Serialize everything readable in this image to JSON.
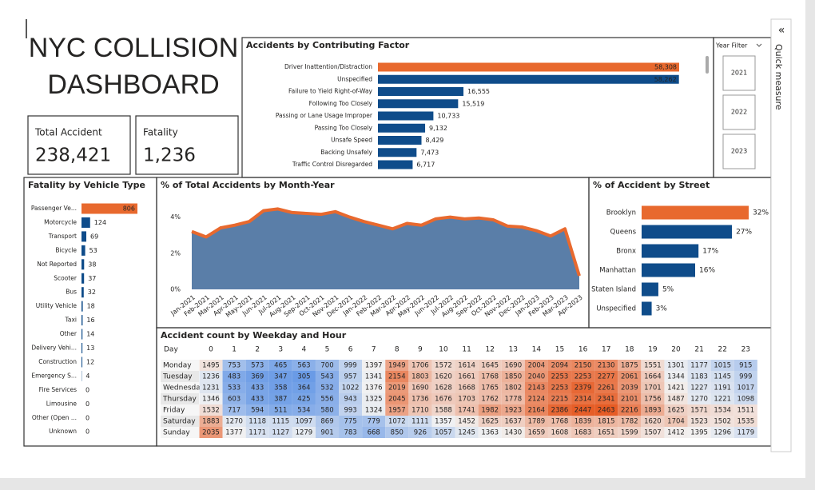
{
  "dashboard": {
    "title": [
      "NYC COLLISION",
      "DASHBOARD"
    ],
    "kpis": [
      {
        "label": "Total Accident",
        "value": "238,421"
      },
      {
        "label": "Fatality",
        "value": "1,236"
      }
    ],
    "year_filter": {
      "title": "Year Filter",
      "options": [
        "2021",
        "2022",
        "2023"
      ]
    },
    "side_pane": "Quick measure"
  },
  "chart_data": [
    {
      "type": "hbar",
      "title": "Accidents by Contributing Factor",
      "categories": [
        "Driver Inattention/Distraction",
        "Unspecified",
        "Failure to Yield Right-of-Way",
        "Following Too Closely",
        "Passing or Lane Usage Improper",
        "Passing Too Closely",
        "Unsafe Speed",
        "Backing Unsafely",
        "Traffic Control Disregarded"
      ],
      "values": [
        58308,
        58262,
        16555,
        15519,
        10733,
        9132,
        8429,
        7473,
        6717
      ],
      "value_labels": [
        "58,308",
        "58,262",
        "16,555",
        "15,519",
        "10,733",
        "9,132",
        "8,429",
        "7,473",
        "6,717"
      ],
      "colors": [
        "#e8692e",
        "#0f4c8a",
        "#0f4c8a",
        "#0f4c8a",
        "#0f4c8a",
        "#0f4c8a",
        "#0f4c8a",
        "#0f4c8a",
        "#0f4c8a"
      ]
    },
    {
      "type": "hbar",
      "title": "Fatality by Vehicle Type",
      "categories": [
        "Passenger Ve...",
        "Motorcycle",
        "Transport",
        "Bicycle",
        "Not Reported",
        "Scooter",
        "Bus",
        "Utility Vehicle",
        "Taxi",
        "Other",
        "Delivery Vehi...",
        "Construction",
        "Emergency S...",
        "Fire Services",
        "Limousine",
        "Other (Open ...",
        "Unknown"
      ],
      "values": [
        806,
        124,
        69,
        53,
        38,
        37,
        32,
        18,
        16,
        14,
        13,
        12,
        4,
        0,
        0,
        0,
        0
      ],
      "colors": [
        "#e8692e",
        "#0f4c8a",
        "#0f4c8a",
        "#0f4c8a",
        "#0f4c8a",
        "#0f4c8a",
        "#0f4c8a",
        "#0f4c8a",
        "#0f4c8a",
        "#0f4c8a",
        "#0f4c8a",
        "#0f4c8a",
        "#0f4c8a",
        "#0f4c8a",
        "#0f4c8a",
        "#0f4c8a",
        "#0f4c8a"
      ]
    },
    {
      "type": "area",
      "title": "% of Total Accidents by Month-Year",
      "x": [
        "Jan-2021",
        "Feb-2021",
        "Mar-2021",
        "Apr-2021",
        "May-2021",
        "Jun-2021",
        "Jul-2021",
        "Aug-2021",
        "Sep-2021",
        "Oct-2021",
        "Nov-2021",
        "Dec-2021",
        "Jan-2022",
        "Feb-2022",
        "Mar-2022",
        "Apr-2022",
        "May-2022",
        "Jun-2022",
        "Jul-2022",
        "Aug-2022",
        "Sep-2022",
        "Oct-2022",
        "Nov-2022",
        "Dec-2022",
        "Jan-2023",
        "Feb-2023",
        "Mar-2023",
        "Apr-2023"
      ],
      "values": [
        3.2,
        2.9,
        3.4,
        3.55,
        3.75,
        4.35,
        4.45,
        4.25,
        4.2,
        4.15,
        4.3,
        4.0,
        3.75,
        3.55,
        3.35,
        3.65,
        3.55,
        3.9,
        4.0,
        3.9,
        3.95,
        3.85,
        3.5,
        3.45,
        3.25,
        2.95,
        3.35,
        0.75
      ],
      "ylim": [
        0,
        4.6
      ],
      "yticks": [
        {
          "value": 0,
          "label": "0%"
        },
        {
          "value": 2,
          "label": "2%"
        },
        {
          "value": 4,
          "label": "4%"
        }
      ],
      "fill_color": "#5a7ea8",
      "line_color": "#e8692e"
    },
    {
      "type": "hbar",
      "title": "% of Accident by Street",
      "categories": [
        "Brooklyn",
        "Queens",
        "Bronx",
        "Manhattan",
        "Staten Island",
        "Unspecified"
      ],
      "values": [
        32,
        27,
        17,
        16,
        5,
        3
      ],
      "value_labels": [
        "32%",
        "27%",
        "17%",
        "16%",
        "5%",
        "3%"
      ],
      "colors": [
        "#e8692e",
        "#0f4c8a",
        "#0f4c8a",
        "#0f4c8a",
        "#0f4c8a",
        "#0f4c8a"
      ]
    },
    {
      "type": "heatmap",
      "title": "Accident count by Weekday and Hour",
      "row_header": "Day",
      "columns": [
        0,
        1,
        2,
        3,
        4,
        5,
        6,
        7,
        8,
        9,
        10,
        11,
        12,
        13,
        14,
        15,
        16,
        17,
        18,
        19,
        20,
        21,
        22,
        23
      ],
      "rows": [
        "Monday",
        "Tuesday",
        "Wednesday",
        "Thursday",
        "Friday",
        "Saturday",
        "Sunday"
      ],
      "values": [
        [
          1495,
          753,
          573,
          465,
          563,
          700,
          999,
          1397,
          1949,
          1706,
          1572,
          1614,
          1645,
          1690,
          2004,
          2094,
          2150,
          2130,
          1875,
          1551,
          1301,
          1177,
          1015,
          915
        ],
        [
          1236,
          483,
          369,
          347,
          305,
          543,
          957,
          1341,
          2154,
          1803,
          1620,
          1661,
          1768,
          1850,
          2040,
          2253,
          2253,
          2277,
          2061,
          1664,
          1344,
          1183,
          1145,
          999
        ],
        [
          1231,
          533,
          433,
          358,
          364,
          532,
          1022,
          1376,
          2019,
          1690,
          1628,
          1668,
          1765,
          1802,
          2143,
          2253,
          2379,
          2261,
          2039,
          1701,
          1421,
          1227,
          1191,
          1017
        ],
        [
          1346,
          603,
          433,
          387,
          425,
          556,
          943,
          1325,
          2045,
          1736,
          1676,
          1703,
          1762,
          1778,
          2124,
          2215,
          2314,
          2341,
          2101,
          1756,
          1487,
          1270,
          1221,
          1098
        ],
        [
          1532,
          717,
          594,
          511,
          534,
          580,
          993,
          1324,
          1957,
          1710,
          1588,
          1741,
          1982,
          1923,
          2164,
          2386,
          2447,
          2463,
          2216,
          1893,
          1625,
          1571,
          1534,
          1511
        ],
        [
          1883,
          1270,
          1118,
          1115,
          1097,
          869,
          775,
          779,
          1072,
          1111,
          1357,
          1452,
          1625,
          1637,
          1789,
          1768,
          1839,
          1815,
          1782,
          1620,
          1704,
          1523,
          1502,
          1535
        ],
        [
          2035,
          1377,
          1171,
          1127,
          1279,
          901,
          783,
          668,
          850,
          926,
          1057,
          1245,
          1363,
          1430,
          1659,
          1608,
          1683,
          1651,
          1599,
          1507,
          1412,
          1395,
          1296,
          1179
        ]
      ],
      "color_scale": [
        "#6a9be6",
        "#f2f2f2",
        "#e65c25"
      ]
    }
  ]
}
